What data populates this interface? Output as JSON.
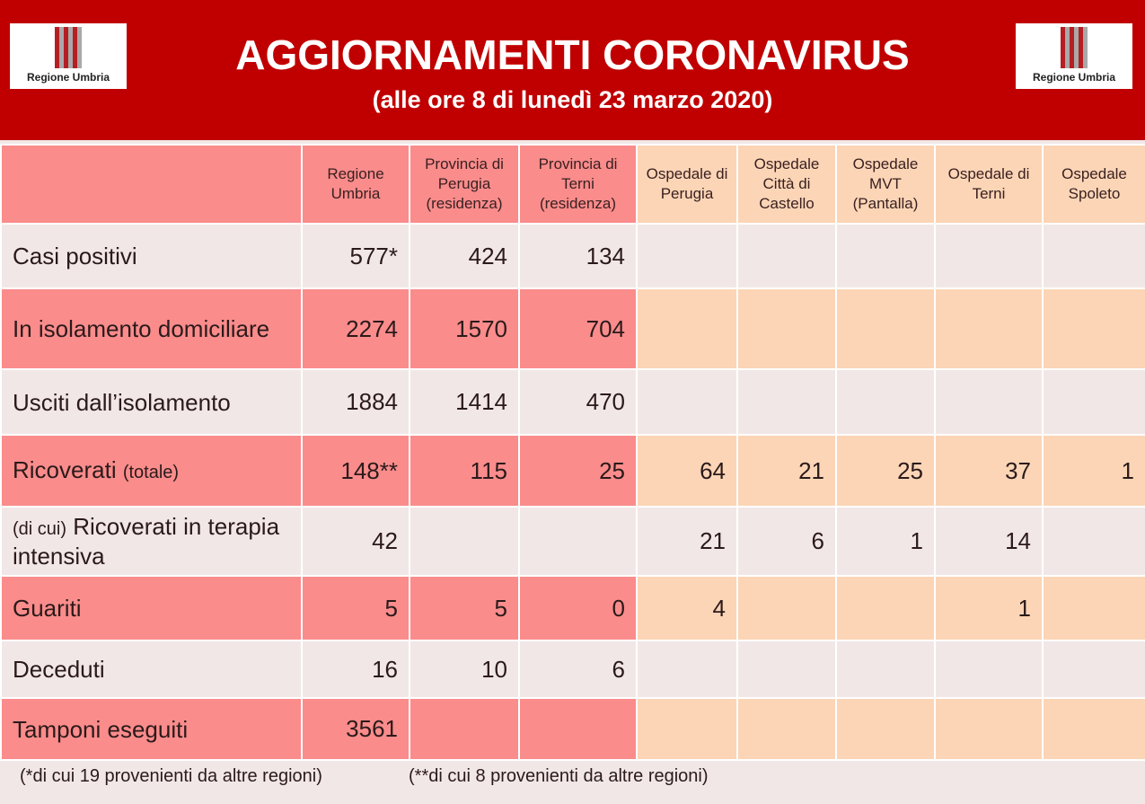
{
  "header": {
    "title": "AGGIORNAMENTI CORONAVIRUS",
    "subtitle": "(alle ore 8 di lunedì 23 marzo 2020)",
    "logo_text": "Regione Umbria"
  },
  "columns": [
    "Regione Umbria",
    "Provincia di Perugia (residenza)",
    "Provincia di Terni (residenza)",
    "Ospedale di Perugia",
    "Ospedale Città di Castello",
    "Ospedale MVT (Pantalla)",
    "Ospedale di Terni",
    "Ospedale Spoleto"
  ],
  "rows": [
    {
      "label": "Casi positivi",
      "values": [
        "577*",
        "424",
        "134",
        "",
        "",
        "",
        "",
        ""
      ]
    },
    {
      "label": "In isolamento domiciliare",
      "values": [
        "2274",
        "1570",
        "704",
        "",
        "",
        "",
        "",
        ""
      ]
    },
    {
      "label": "Usciti dall’isolamento",
      "values": [
        "1884",
        "1414",
        "470",
        "",
        "",
        "",
        "",
        ""
      ]
    },
    {
      "label": "Ricoverati",
      "label_small": "(totale)",
      "values": [
        "148**",
        "115",
        "25",
        "64",
        "21",
        "25",
        "37",
        "1"
      ]
    },
    {
      "label_prefix": "(di cui)",
      "label": "Ricoverati in terapia intensiva",
      "values": [
        "42",
        "",
        "",
        "21",
        "6",
        "1",
        "14",
        ""
      ]
    },
    {
      "label": "Guariti",
      "values": [
        "5",
        "5",
        "0",
        "4",
        "",
        "",
        "1",
        ""
      ]
    },
    {
      "label": "Deceduti",
      "values": [
        "16",
        "10",
        "6",
        "",
        "",
        "",
        "",
        ""
      ]
    },
    {
      "label": "Tamponi eseguiti",
      "values": [
        "3561",
        "",
        "",
        "",
        "",
        "",
        "",
        ""
      ]
    }
  ],
  "footnotes": [
    "(*di cui 19 provenienti da altre regioni)",
    "(**di cui 8 provenienti da altre regioni)"
  ]
}
